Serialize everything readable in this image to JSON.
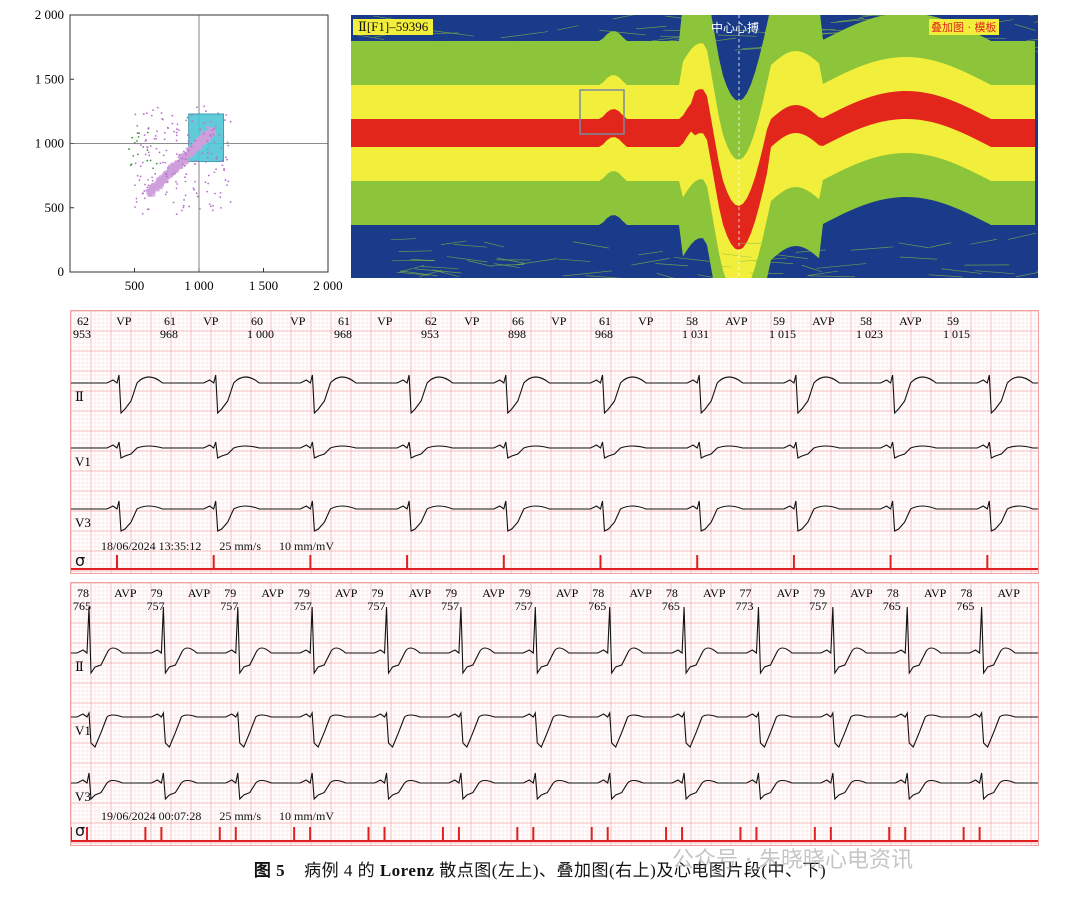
{
  "figure": {
    "caption_label": "图 5",
    "caption_text_a": "病例 4 的",
    "caption_text_bold": "Lorenz",
    "caption_text_b": "散点图(左上)、叠加图(右上)及心电图片段(中、下)",
    "watermark": "公众号 · 朱晓晓心电资讯"
  },
  "lorenz": {
    "x_ticks": [
      "500",
      "1 000",
      "1 500",
      "2 000"
    ],
    "y_ticks": [
      "2 000",
      "1 500",
      "1 000",
      "500",
      "0"
    ],
    "xlim": [
      0,
      2000
    ],
    "ylim": [
      0,
      2000
    ],
    "crosshair": [
      1000,
      1000
    ],
    "selection_box": {
      "x": [
        920,
        1190
      ],
      "y": [
        860,
        1230
      ]
    },
    "colors": {
      "main_cluster": "#cf9fdc",
      "scatter": "#b470c8",
      "green": "#3a9a3a",
      "box": "#4fc6d6"
    }
  },
  "overlay": {
    "header_label": "Ⅱ[F1]–59396",
    "center_label": "中心心搏",
    "right_label": "叠加图 · 模板",
    "colors": {
      "blue": "#1a3a8a",
      "green": "#8cc43a",
      "yellow": "#f2ef3c",
      "red": "#e3261c"
    }
  },
  "ecg_mid": {
    "date_time": "18/06/2024 13:35:12",
    "speed": "25 mm/s",
    "gain": "10 mm/mV",
    "leads": [
      "Ⅱ",
      "V1",
      "V3"
    ],
    "beats": [
      {
        "label": "VP",
        "hr": "62",
        "rr": "953"
      },
      {
        "label": "VP",
        "hr": "61",
        "rr": "968"
      },
      {
        "label": "VP",
        "hr": "60",
        "rr": "1 000"
      },
      {
        "label": "VP",
        "hr": "61",
        "rr": "968"
      },
      {
        "label": "VP",
        "hr": "62",
        "rr": "953"
      },
      {
        "label": "VP",
        "hr": "66",
        "rr": "898"
      },
      {
        "label": "VP",
        "hr": "61",
        "rr": "968"
      },
      {
        "label": "AVP",
        "hr": "58",
        "rr": "1 031"
      },
      {
        "label": "AVP",
        "hr": "59",
        "rr": "1 015"
      },
      {
        "label": "AVP",
        "hr": "58",
        "rr": "1 023"
      },
      {
        "label": "",
        "hr": "59",
        "rr": "1 015"
      }
    ]
  },
  "ecg_bot": {
    "date_time": "19/06/2024 00:07:28",
    "speed": "25 mm/s",
    "gain": "10 mm/mV",
    "leads": [
      "Ⅱ",
      "V1",
      "V3"
    ],
    "beats": [
      {
        "label": "AVP",
        "hr": "78",
        "rr": "765"
      },
      {
        "label": "AVP",
        "hr": "79",
        "rr": "757"
      },
      {
        "label": "AVP",
        "hr": "79",
        "rr": "757"
      },
      {
        "label": "AVP",
        "hr": "79",
        "rr": "757"
      },
      {
        "label": "AVP",
        "hr": "79",
        "rr": "757"
      },
      {
        "label": "AVP",
        "hr": "79",
        "rr": "757"
      },
      {
        "label": "AVP",
        "hr": "79",
        "rr": "757"
      },
      {
        "label": "AVP",
        "hr": "78",
        "rr": "765"
      },
      {
        "label": "AVP",
        "hr": "78",
        "rr": "765"
      },
      {
        "label": "AVP",
        "hr": "77",
        "rr": "773"
      },
      {
        "label": "AVP",
        "hr": "79",
        "rr": "757"
      },
      {
        "label": "AVP",
        "hr": "78",
        "rr": "765"
      },
      {
        "label": "AVP",
        "hr": "78",
        "rr": "765"
      }
    ]
  }
}
